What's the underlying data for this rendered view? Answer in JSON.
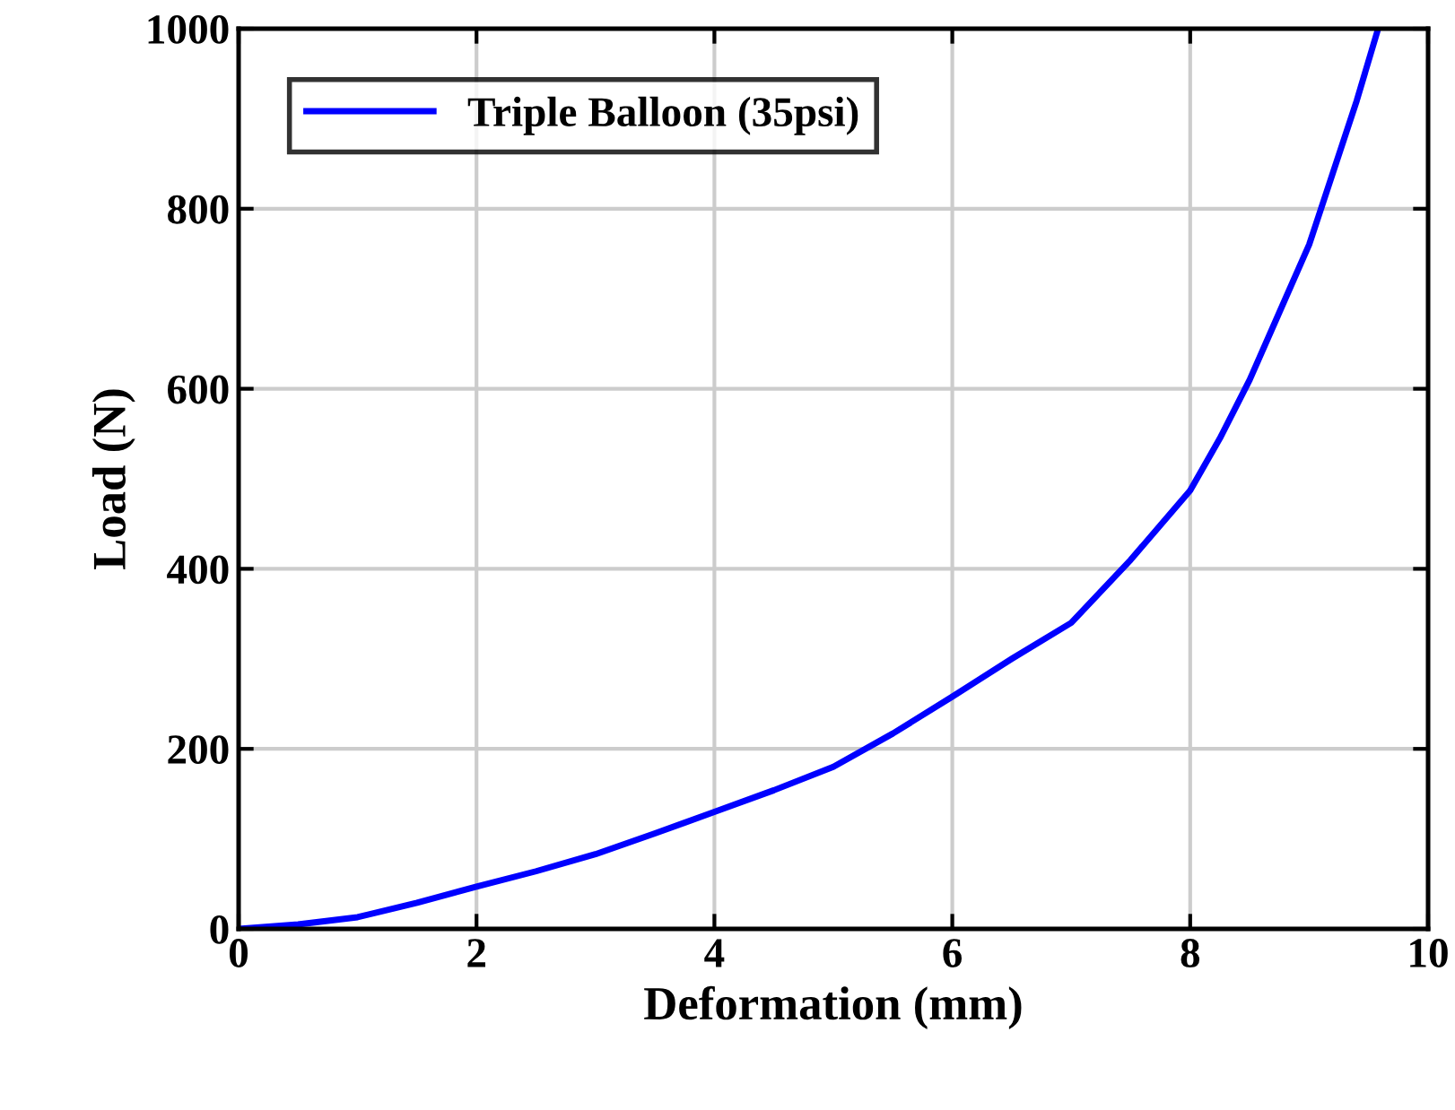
{
  "chart_data": {
    "type": "line",
    "xlabel": "Deformation (mm)",
    "ylabel": "Load (N)",
    "x": [
      0,
      0.5,
      1,
      1.5,
      2,
      2.5,
      3,
      3.5,
      4,
      4.5,
      5,
      5.5,
      6,
      6.5,
      7,
      7.5,
      8,
      8.25,
      8.5,
      8.75,
      9,
      9.2,
      9.4,
      9.58
    ],
    "series": [
      {
        "name": "Triple Balloon (35psi)",
        "color": "#0000ff",
        "values": [
          0,
          5,
          13,
          29,
          47,
          64,
          83,
          106,
          130,
          154,
          180,
          217,
          258,
          300,
          340,
          410,
          487,
          545,
          610,
          685,
          760,
          840,
          920,
          1000
        ]
      }
    ],
    "xlim": [
      0,
      10
    ],
    "xticks": [
      0,
      2,
      4,
      6,
      8,
      10
    ],
    "ylim": [
      0,
      1000
    ],
    "yticks": [
      0,
      200,
      400,
      600,
      800,
      1000
    ],
    "grid": true,
    "legend": "top left",
    "marker": "none",
    "line_style": "solid"
  }
}
